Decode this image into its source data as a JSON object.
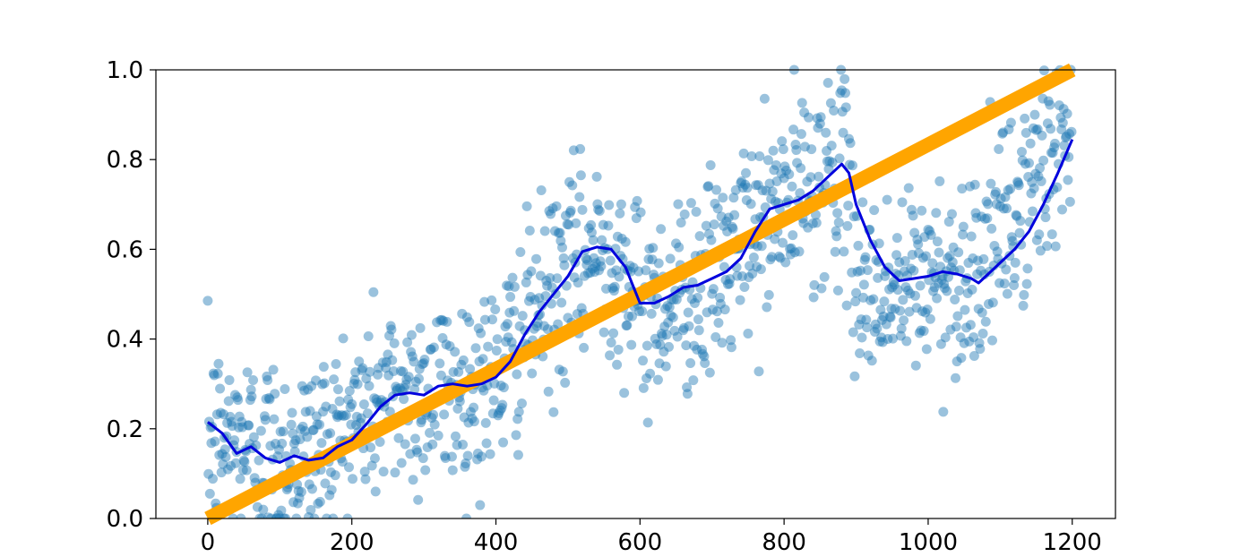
{
  "chart_data": {
    "type": "scatter",
    "title": "",
    "xlabel": "",
    "ylabel": "",
    "xlim": [
      -72,
      1260
    ],
    "ylim": [
      0,
      1.0
    ],
    "grid": false,
    "legend": "none",
    "x_ticks": [
      0,
      200,
      400,
      600,
      800,
      1000,
      1200
    ],
    "x_tick_labels": [
      "0",
      "200",
      "400",
      "600",
      "800",
      "1000",
      "1200"
    ],
    "y_ticks": [
      0.0,
      0.2,
      0.4,
      0.6,
      0.8,
      1.0
    ],
    "y_tick_labels": [
      "0.0",
      "0.2",
      "0.4",
      "0.6",
      "0.8",
      "1.0"
    ],
    "colors": {
      "scatter": "#1f77b4",
      "trend": "#ffa500",
      "rolling": "#0000dd"
    },
    "series": [
      {
        "type": "line",
        "values": [
          [
            0,
            0.0
          ],
          [
            1200,
            1.0
          ]
        ]
      },
      {
        "type": "scatter",
        "point_count": 1200,
        "anchors": [
          [
            0,
            0.18
          ],
          [
            50,
            0.17
          ],
          [
            100,
            0.14
          ],
          [
            150,
            0.15
          ],
          [
            200,
            0.22
          ],
          [
            250,
            0.27
          ],
          [
            300,
            0.28
          ],
          [
            350,
            0.29
          ],
          [
            400,
            0.31
          ],
          [
            450,
            0.45
          ],
          [
            500,
            0.55
          ],
          [
            550,
            0.6
          ],
          [
            575,
            0.57
          ],
          [
            600,
            0.46
          ],
          [
            650,
            0.5
          ],
          [
            700,
            0.53
          ],
          [
            750,
            0.62
          ],
          [
            800,
            0.7
          ],
          [
            850,
            0.76
          ],
          [
            880,
            0.79
          ],
          [
            900,
            0.55
          ],
          [
            950,
            0.5
          ],
          [
            1000,
            0.54
          ],
          [
            1050,
            0.54
          ],
          [
            1100,
            0.62
          ],
          [
            1150,
            0.75
          ],
          [
            1200,
            0.88
          ]
        ]
      },
      {
        "type": "line",
        "values": [
          [
            0,
            0.215
          ],
          [
            20,
            0.19
          ],
          [
            40,
            0.145
          ],
          [
            60,
            0.16
          ],
          [
            80,
            0.135
          ],
          [
            100,
            0.125
          ],
          [
            120,
            0.14
          ],
          [
            140,
            0.13
          ],
          [
            160,
            0.135
          ],
          [
            180,
            0.16
          ],
          [
            200,
            0.175
          ],
          [
            220,
            0.21
          ],
          [
            240,
            0.25
          ],
          [
            260,
            0.275
          ],
          [
            280,
            0.28
          ],
          [
            300,
            0.275
          ],
          [
            320,
            0.295
          ],
          [
            340,
            0.3
          ],
          [
            360,
            0.295
          ],
          [
            380,
            0.3
          ],
          [
            400,
            0.315
          ],
          [
            420,
            0.35
          ],
          [
            440,
            0.41
          ],
          [
            460,
            0.46
          ],
          [
            480,
            0.5
          ],
          [
            500,
            0.54
          ],
          [
            520,
            0.595
          ],
          [
            540,
            0.605
          ],
          [
            560,
            0.6
          ],
          [
            580,
            0.56
          ],
          [
            600,
            0.48
          ],
          [
            620,
            0.48
          ],
          [
            640,
            0.495
          ],
          [
            660,
            0.515
          ],
          [
            680,
            0.52
          ],
          [
            700,
            0.535
          ],
          [
            720,
            0.55
          ],
          [
            740,
            0.58
          ],
          [
            760,
            0.64
          ],
          [
            780,
            0.69
          ],
          [
            800,
            0.7
          ],
          [
            820,
            0.71
          ],
          [
            840,
            0.73
          ],
          [
            860,
            0.76
          ],
          [
            880,
            0.79
          ],
          [
            890,
            0.77
          ],
          [
            900,
            0.7
          ],
          [
            920,
            0.62
          ],
          [
            940,
            0.56
          ],
          [
            960,
            0.53
          ],
          [
            980,
            0.535
          ],
          [
            1000,
            0.54
          ],
          [
            1020,
            0.55
          ],
          [
            1040,
            0.545
          ],
          [
            1060,
            0.535
          ],
          [
            1070,
            0.525
          ],
          [
            1080,
            0.54
          ],
          [
            1100,
            0.57
          ],
          [
            1120,
            0.6
          ],
          [
            1140,
            0.64
          ],
          [
            1160,
            0.7
          ],
          [
            1180,
            0.77
          ],
          [
            1200,
            0.845
          ]
        ]
      }
    ]
  }
}
